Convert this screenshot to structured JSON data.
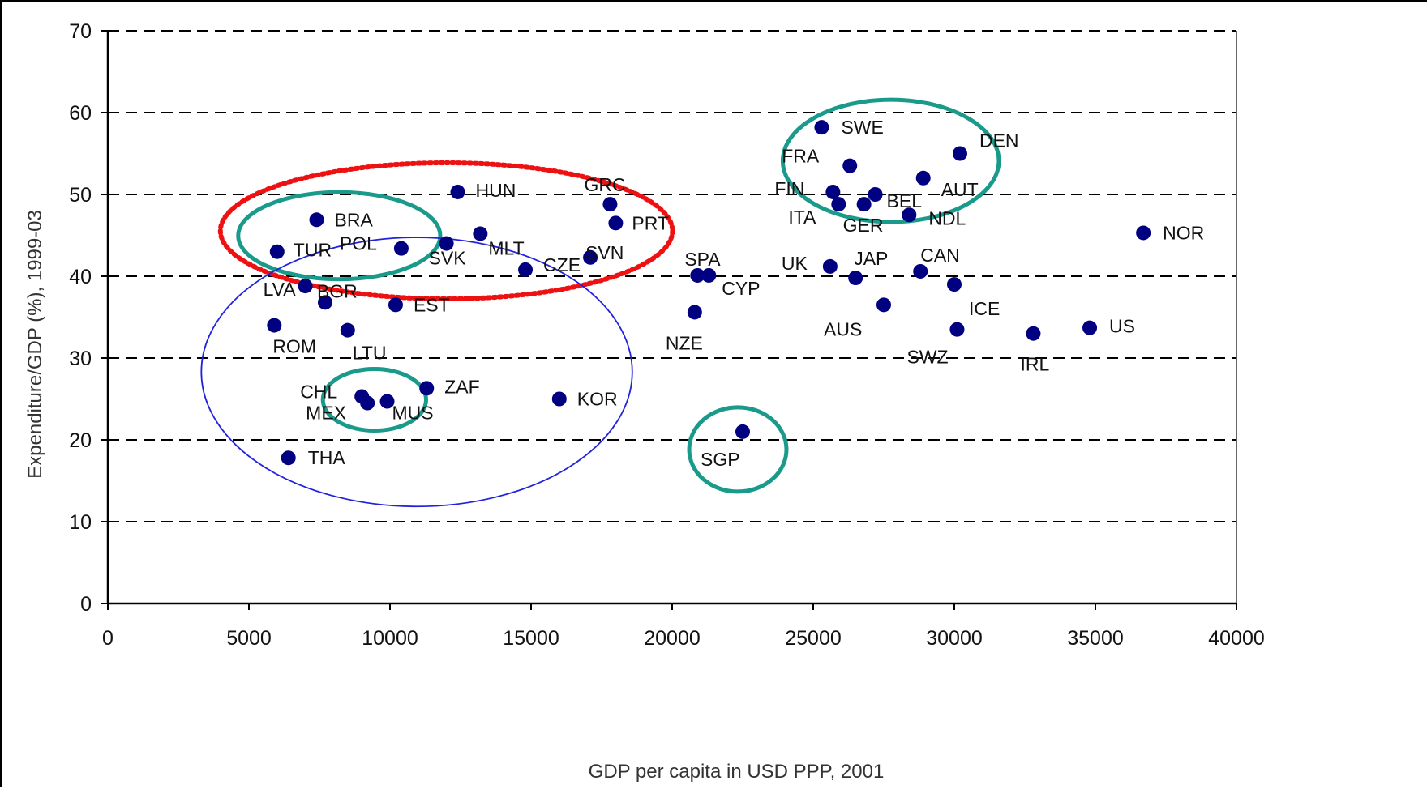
{
  "chart_data": {
    "type": "scatter",
    "title": "",
    "xlabel": "GDP per capita in USD PPP, 2001",
    "ylabel": "Expenditure/GDP (%), 1999-03",
    "xlim": [
      0,
      40000
    ],
    "ylim": [
      0,
      70
    ],
    "x_ticks": [
      "0",
      "5000",
      "10000",
      "15000",
      "20000",
      "25000",
      "30000",
      "35000",
      "40000"
    ],
    "y_ticks": [
      "0",
      "10",
      "20",
      "30",
      "40",
      "50",
      "60",
      "70"
    ],
    "grid": "horizontal dashed",
    "marker_color": "#000080",
    "points": [
      {
        "label": "SWE",
        "x": 25300,
        "y": 58.2
      },
      {
        "label": "DEN",
        "x": 30200,
        "y": 55.0
      },
      {
        "label": "FRA",
        "x": 26300,
        "y": 53.5
      },
      {
        "label": "AUT",
        "x": 28900,
        "y": 52.0
      },
      {
        "label": "FIN",
        "x": 25700,
        "y": 50.3
      },
      {
        "label": "ITA",
        "x": 25900,
        "y": 48.8
      },
      {
        "label": "GER",
        "x": 26800,
        "y": 48.8
      },
      {
        "label": "BEL",
        "x": 27200,
        "y": 50.0
      },
      {
        "label": "NDL",
        "x": 28400,
        "y": 47.5
      },
      {
        "label": "NOR",
        "x": 36700,
        "y": 45.3
      },
      {
        "label": "UK",
        "x": 25600,
        "y": 41.2
      },
      {
        "label": "JAP",
        "x": 26500,
        "y": 39.8
      },
      {
        "label": "CAN",
        "x": 28800,
        "y": 40.6
      },
      {
        "label": "ICE",
        "x": 30000,
        "y": 39.0
      },
      {
        "label": "AUS",
        "x": 27500,
        "y": 36.5
      },
      {
        "label": "SWZ",
        "x": 30100,
        "y": 33.5
      },
      {
        "label": "IRL",
        "x": 32800,
        "y": 33.0
      },
      {
        "label": "US",
        "x": 34800,
        "y": 33.7
      },
      {
        "label": "SPA",
        "x": 20900,
        "y": 40.1
      },
      {
        "label": "CYP",
        "x": 21300,
        "y": 40.1
      },
      {
        "label": "NZE",
        "x": 20800,
        "y": 35.6
      },
      {
        "label": "SGP",
        "x": 22500,
        "y": 21.0
      },
      {
        "label": "HUN",
        "x": 12400,
        "y": 50.3
      },
      {
        "label": "GRC",
        "x": 17800,
        "y": 48.8
      },
      {
        "label": "PRT",
        "x": 18000,
        "y": 46.5
      },
      {
        "label": "BRA",
        "x": 7400,
        "y": 46.9
      },
      {
        "label": "MLT",
        "x": 13200,
        "y": 45.2
      },
      {
        "label": "TUR",
        "x": 6000,
        "y": 43.0
      },
      {
        "label": "POL",
        "x": 10400,
        "y": 43.4
      },
      {
        "label": "SVK",
        "x": 12000,
        "y": 44.0
      },
      {
        "label": "CZE",
        "x": 14800,
        "y": 40.8
      },
      {
        "label": "SVN",
        "x": 17100,
        "y": 42.3
      },
      {
        "label": "LVA",
        "x": 7000,
        "y": 38.8
      },
      {
        "label": "BGR",
        "x": 7700,
        "y": 36.8
      },
      {
        "label": "EST",
        "x": 10200,
        "y": 36.5
      },
      {
        "label": "ROM",
        "x": 5900,
        "y": 34.0
      },
      {
        "label": "LTU",
        "x": 8500,
        "y": 33.4
      },
      {
        "label": "CHL",
        "x": 9000,
        "y": 25.3
      },
      {
        "label": "MEX",
        "x": 9200,
        "y": 24.5
      },
      {
        "label": "MUS",
        "x": 9900,
        "y": 24.7
      },
      {
        "label": "ZAF",
        "x": 11300,
        "y": 26.3
      },
      {
        "label": "KOR",
        "x": 16000,
        "y": 25.0
      },
      {
        "label": "THA",
        "x": 6400,
        "y": 17.8
      }
    ],
    "annotations": [
      {
        "shape": "ellipse",
        "style": "solid",
        "color": "#1a9a8a",
        "around": [
          "SWE",
          "DEN",
          "FRA",
          "AUT",
          "FIN",
          "BEL"
        ]
      },
      {
        "shape": "ellipse",
        "style": "solid",
        "color": "#1a9a8a",
        "around": [
          "BRA",
          "TUR",
          "POL"
        ]
      },
      {
        "shape": "ellipse",
        "style": "solid",
        "color": "#1a9a8a",
        "around": [
          "CHL",
          "MEX",
          "MUS"
        ]
      },
      {
        "shape": "ellipse",
        "style": "solid",
        "color": "#1a9a8a",
        "around": [
          "SGP"
        ]
      },
      {
        "shape": "ellipse",
        "style": "dotted",
        "color": "#ee1111",
        "around": [
          "BRA",
          "TUR",
          "POL",
          "HUN",
          "MLT",
          "SVK",
          "CZE",
          "SVN",
          "GRC",
          "PRT"
        ]
      },
      {
        "shape": "ellipse",
        "style": "thin",
        "color": "#2222dd",
        "around": [
          "LVA",
          "BGR",
          "EST",
          "ROM",
          "LTU",
          "CHL",
          "MEX",
          "MUS",
          "ZAF",
          "KOR",
          "THA"
        ]
      }
    ]
  }
}
